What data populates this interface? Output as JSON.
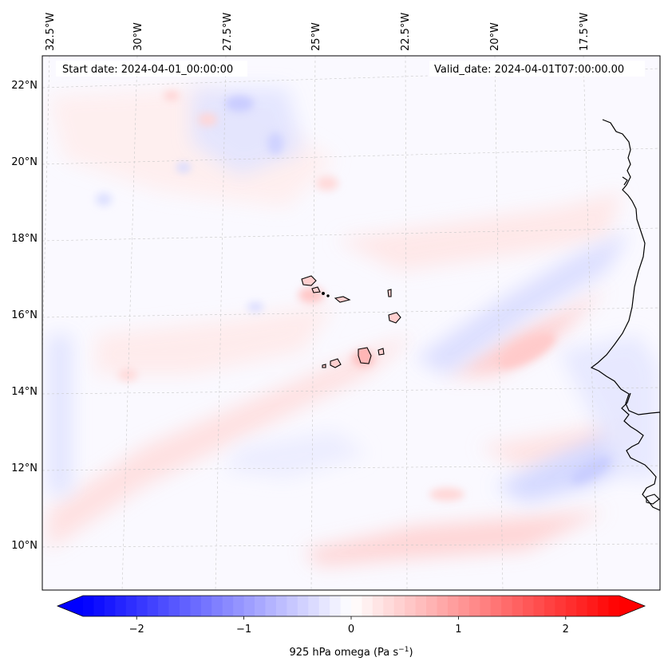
{
  "map": {
    "title_left": "Start date: 2024-04-01_00:00:00",
    "title_right": "Valid_date: 2024-04-01T07:00:00.00",
    "lon_labels": [
      "32.5°W",
      "30°W",
      "27.5°W",
      "25°W",
      "22.5°W",
      "20°W",
      "17.5°W"
    ],
    "lat_labels": [
      "22°N",
      "20°N",
      "18°N",
      "16°N",
      "14°N",
      "12°N",
      "10°N"
    ],
    "region": "Cabo Verde and West African coast",
    "colors": {
      "negative": "#0000ff",
      "neutral": "#ffffff",
      "positive": "#ff0000",
      "coast": "#000000"
    }
  },
  "colorbar": {
    "ticks": [
      "−2",
      "−1",
      "0",
      "1",
      "2"
    ],
    "min": -2.5,
    "max": 2.5,
    "label_main": "925 hPa omega (Pa s",
    "label_unit_exp": "−1",
    "label_close": ")"
  }
}
